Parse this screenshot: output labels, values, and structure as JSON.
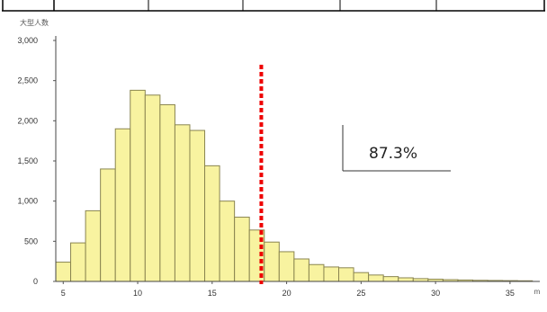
{
  "chart_data": {
    "type": "bar",
    "title": "",
    "ylabel": "大型人数",
    "xlabel": "m",
    "ylim": [
      0,
      3000
    ],
    "xlim": [
      4.5,
      37
    ],
    "y_ticks": [
      {
        "value": 0,
        "label": "0"
      },
      {
        "value": 500,
        "label": "500"
      },
      {
        "value": 1000,
        "label": "1,000"
      },
      {
        "value": 1500,
        "label": "1,500"
      },
      {
        "value": 2000,
        "label": "2,000"
      },
      {
        "value": 2500,
        "label": "2,500"
      },
      {
        "value": 3000,
        "label": "3,000"
      }
    ],
    "x_ticks": [
      {
        "value": 5,
        "label": "5"
      },
      {
        "value": 10,
        "label": "10"
      },
      {
        "value": 15,
        "label": "15"
      },
      {
        "value": 20,
        "label": "20"
      },
      {
        "value": 25,
        "label": "25"
      },
      {
        "value": 30,
        "label": "30"
      },
      {
        "value": 35,
        "label": "35"
      }
    ],
    "bar_color": "#f8f3a0",
    "bar_edge": "#8a8550",
    "bins": [
      {
        "x": 5,
        "v": 240
      },
      {
        "x": 6,
        "v": 480
      },
      {
        "x": 7,
        "v": 880
      },
      {
        "x": 8,
        "v": 1400
      },
      {
        "x": 9,
        "v": 1900
      },
      {
        "x": 10,
        "v": 2380
      },
      {
        "x": 11,
        "v": 2320
      },
      {
        "x": 12,
        "v": 2200
      },
      {
        "x": 13,
        "v": 1950
      },
      {
        "x": 14,
        "v": 1880
      },
      {
        "x": 15,
        "v": 1440
      },
      {
        "x": 16,
        "v": 1000
      },
      {
        "x": 17,
        "v": 800
      },
      {
        "x": 18,
        "v": 640
      },
      {
        "x": 19,
        "v": 490
      },
      {
        "x": 20,
        "v": 370
      },
      {
        "x": 21,
        "v": 280
      },
      {
        "x": 22,
        "v": 210
      },
      {
        "x": 23,
        "v": 180
      },
      {
        "x": 24,
        "v": 170
      },
      {
        "x": 25,
        "v": 110
      },
      {
        "x": 26,
        "v": 80
      },
      {
        "x": 27,
        "v": 60
      },
      {
        "x": 28,
        "v": 45
      },
      {
        "x": 29,
        "v": 35
      },
      {
        "x": 30,
        "v": 28
      },
      {
        "x": 31,
        "v": 22
      },
      {
        "x": 32,
        "v": 18
      },
      {
        "x": 33,
        "v": 14
      },
      {
        "x": 34,
        "v": 12
      },
      {
        "x": 35,
        "v": 10
      },
      {
        "x": 36,
        "v": 8
      }
    ],
    "threshold": {
      "x": 18.3,
      "color": "#ee0000",
      "style": "dotted"
    },
    "annotation": {
      "text": "87.3%"
    }
  }
}
